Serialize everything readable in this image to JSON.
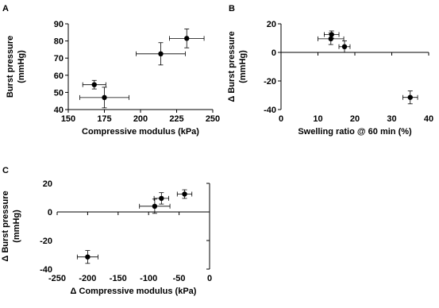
{
  "chart_data": [
    {
      "panel": "A",
      "type": "scatter",
      "xlabel": "Compressive modulus (kPa)",
      "ylabel": "Burst pressure (mmHg)",
      "xlim": [
        150,
        250
      ],
      "ylim": [
        40,
        90
      ],
      "xticks": [
        150,
        175,
        200,
        225,
        250
      ],
      "yticks": [
        40,
        50,
        60,
        70,
        80,
        90
      ],
      "grid": false,
      "points": [
        {
          "x": 168,
          "y": 54.5,
          "xerr": 8,
          "yerr": 2.5
        },
        {
          "x": 175,
          "y": 47,
          "xerr": 17,
          "yerr": 6
        },
        {
          "x": 214,
          "y": 72.5,
          "xerr": 17,
          "yerr": 6.5
        },
        {
          "x": 232,
          "y": 81.5,
          "xerr": 12,
          "yerr": 5.5
        }
      ]
    },
    {
      "panel": "B",
      "type": "scatter",
      "xlabel": "Swelling ratio @ 60 min (%)",
      "ylabel": "Δ Burst pressure (mmHg)",
      "xlim": [
        0,
        40
      ],
      "ylim": [
        -40,
        20
      ],
      "xticks": [
        0,
        10,
        20,
        30,
        40
      ],
      "yticks": [
        -40,
        -20,
        0,
        20
      ],
      "grid": false,
      "points": [
        {
          "x": 13.7,
          "y": 12.5,
          "xerr": 2,
          "yerr": 2.5
        },
        {
          "x": 13.5,
          "y": 9.5,
          "xerr": 3.5,
          "yerr": 4
        },
        {
          "x": 17.2,
          "y": 4,
          "xerr": 1.5,
          "yerr": 4
        },
        {
          "x": 35,
          "y": -31.5,
          "xerr": 2,
          "yerr": 4.5
        }
      ]
    },
    {
      "panel": "C",
      "type": "scatter",
      "xlabel": "Δ Compressive modulus (kPa)",
      "ylabel": "Δ Burst pressure (mmHg)",
      "xlim": [
        -250,
        0
      ],
      "ylim": [
        -40,
        20
      ],
      "xticks": [
        -250,
        -200,
        -150,
        -100,
        -50,
        0
      ],
      "yticks": [
        -40,
        -20,
        0,
        20
      ],
      "grid": false,
      "points": [
        {
          "x": -41,
          "y": 12.5,
          "xerr": 12,
          "yerr": 3
        },
        {
          "x": -79,
          "y": 9.5,
          "xerr": 12,
          "yerr": 4
        },
        {
          "x": -90,
          "y": 4,
          "xerr": 25,
          "yerr": 5
        },
        {
          "x": -200,
          "y": -31.5,
          "xerr": 17,
          "yerr": 4.5
        }
      ]
    }
  ]
}
